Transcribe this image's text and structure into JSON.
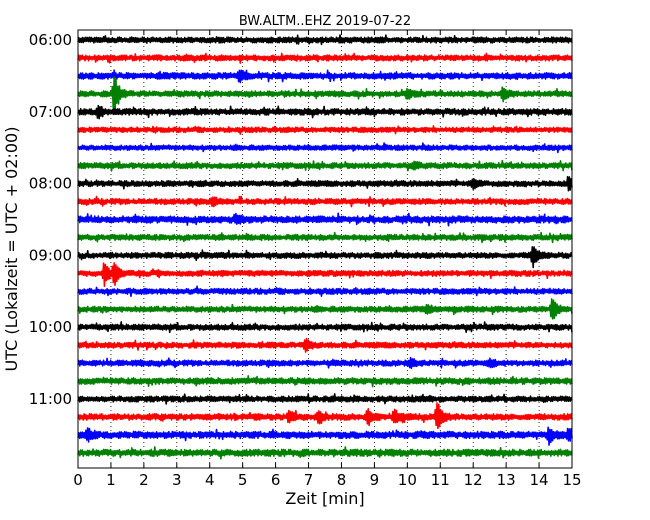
{
  "chart_data": {
    "type": "line",
    "title": "BW.ALTM..EHZ 2019-07-22",
    "xlabel": "Zeit  [min]",
    "ylabel": "UTC (Lokalzeit = UTC + 02:00)",
    "xlim": [
      0,
      15
    ],
    "x_ticks": [
      "0",
      "1",
      "2",
      "3",
      "4",
      "5",
      "6",
      "7",
      "8",
      "9",
      "10",
      "11",
      "12",
      "13",
      "14",
      "15"
    ],
    "y_tick_labels": [
      "06:00",
      "07:00",
      "08:00",
      "09:00",
      "10:00",
      "11:00"
    ],
    "y_tick_trace_index": [
      0,
      4,
      8,
      12,
      16,
      20
    ],
    "grid": "vertical-dotted",
    "colors": [
      "#000000",
      "#ff0000",
      "#0000ff",
      "#008000"
    ],
    "traces": [
      {
        "start": "06:00",
        "color": "#000000",
        "amp": 2.0,
        "events": []
      },
      {
        "start": "06:15",
        "color": "#ff0000",
        "amp": 2.0,
        "events": []
      },
      {
        "start": "06:30",
        "color": "#0000ff",
        "amp": 2.2,
        "events": [
          {
            "t": 4.9,
            "a": 6
          }
        ]
      },
      {
        "start": "06:45",
        "color": "#008000",
        "amp": 2.0,
        "events": [
          {
            "t": 1.1,
            "a": 22
          },
          {
            "t": 10.0,
            "a": 5
          },
          {
            "t": 12.9,
            "a": 7
          }
        ]
      },
      {
        "start": "07:00",
        "color": "#000000",
        "amp": 2.2,
        "events": [
          {
            "t": 0.6,
            "a": 6
          }
        ]
      },
      {
        "start": "07:15",
        "color": "#ff0000",
        "amp": 1.8,
        "events": []
      },
      {
        "start": "07:30",
        "color": "#0000ff",
        "amp": 1.8,
        "events": []
      },
      {
        "start": "07:45",
        "color": "#008000",
        "amp": 2.0,
        "events": [
          {
            "t": 10.2,
            "a": 4
          }
        ]
      },
      {
        "start": "08:00",
        "color": "#000000",
        "amp": 2.0,
        "events": [
          {
            "t": 12.0,
            "a": 5
          },
          {
            "t": 14.9,
            "a": 8
          }
        ]
      },
      {
        "start": "08:15",
        "color": "#ff0000",
        "amp": 2.0,
        "events": [
          {
            "t": 4.1,
            "a": 4
          }
        ]
      },
      {
        "start": "08:30",
        "color": "#0000ff",
        "amp": 2.4,
        "events": [
          {
            "t": 4.8,
            "a": 4
          }
        ]
      },
      {
        "start": "08:45",
        "color": "#008000",
        "amp": 2.0,
        "events": []
      },
      {
        "start": "09:00",
        "color": "#000000",
        "amp": 2.0,
        "events": [
          {
            "t": 13.8,
            "a": 11
          }
        ]
      },
      {
        "start": "09:15",
        "color": "#ff0000",
        "amp": 2.0,
        "events": [
          {
            "t": 0.8,
            "a": 12
          },
          {
            "t": 1.1,
            "a": 11
          }
        ]
      },
      {
        "start": "09:30",
        "color": "#0000ff",
        "amp": 2.0,
        "events": []
      },
      {
        "start": "09:45",
        "color": "#008000",
        "amp": 2.0,
        "events": [
          {
            "t": 14.4,
            "a": 14
          },
          {
            "t": 10.6,
            "a": 4
          }
        ]
      },
      {
        "start": "10:00",
        "color": "#000000",
        "amp": 2.0,
        "events": []
      },
      {
        "start": "10:15",
        "color": "#ff0000",
        "amp": 2.0,
        "events": [
          {
            "t": 6.9,
            "a": 6
          }
        ]
      },
      {
        "start": "10:30",
        "color": "#0000ff",
        "amp": 2.0,
        "events": [
          {
            "t": 10.1,
            "a": 4
          },
          {
            "t": 12.5,
            "a": 4
          }
        ]
      },
      {
        "start": "10:45",
        "color": "#008000",
        "amp": 2.2,
        "events": []
      },
      {
        "start": "11:00",
        "color": "#000000",
        "amp": 2.0,
        "events": []
      },
      {
        "start": "11:15",
        "color": "#ff0000",
        "amp": 2.2,
        "events": [
          {
            "t": 6.4,
            "a": 5
          },
          {
            "t": 7.3,
            "a": 6
          },
          {
            "t": 8.8,
            "a": 8
          },
          {
            "t": 9.6,
            "a": 7
          },
          {
            "t": 10.9,
            "a": 16
          }
        ]
      },
      {
        "start": "11:30",
        "color": "#0000ff",
        "amp": 2.4,
        "events": [
          {
            "t": 0.3,
            "a": 6
          },
          {
            "t": 14.3,
            "a": 8
          },
          {
            "t": 14.9,
            "a": 7
          }
        ]
      },
      {
        "start": "11:45",
        "color": "#008000",
        "amp": 2.4,
        "events": []
      }
    ]
  }
}
